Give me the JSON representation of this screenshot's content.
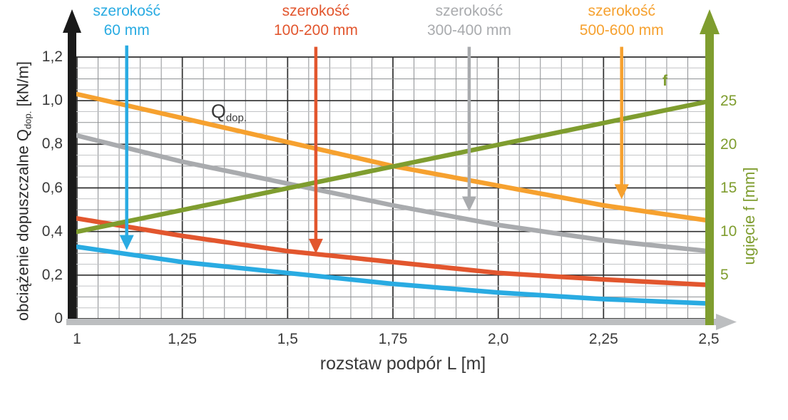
{
  "chart_data": {
    "type": "line",
    "title": "",
    "xlabel": "rozstaw podpór L [m]",
    "x_range": [
      1,
      2.5
    ],
    "x": [
      1,
      1.25,
      1.5,
      1.75,
      2.0,
      2.25,
      2.5
    ],
    "x_tick_labels": [
      "1",
      "1,25",
      "1,5",
      "1,75",
      "2,0",
      "2,25",
      "2,5"
    ],
    "left_axis": {
      "label_pre": "obciążenie dopuszczalne Q",
      "label_sub": "dop.",
      "label_post": " [kN/m]",
      "range": [
        0,
        1.2
      ],
      "tick_values": [
        0,
        0.2,
        0.4,
        0.6,
        0.8,
        1.0,
        1.2
      ],
      "tick_labels": [
        "0",
        "0,2",
        "0,4",
        "0,6",
        "0,8",
        "1,0",
        "1,2"
      ],
      "color": "#1a1a1a"
    },
    "right_axis": {
      "label": "ugięcie f [mm]",
      "range": [
        0,
        25
      ],
      "tick_values": [
        5,
        10,
        15,
        20,
        25
      ],
      "tick_labels": [
        "5",
        "10",
        "15",
        "20",
        "25"
      ],
      "color": "#7f9d2f"
    },
    "grid": {
      "on": true,
      "x_minor_step": 0.05,
      "x_major_step": 0.25,
      "y_minor_step": 0.05,
      "y_major_step": 0.2,
      "minor_color": "#c2c4c6",
      "medium_color": "#8d8f92",
      "major_color": "#2f2f2f"
    },
    "x_axis_bar_color": "#bcbec0",
    "series": [
      {
        "name": "szerokość 60 mm",
        "axis": "left",
        "color": "#29abe2",
        "values": [
          0.33,
          0.26,
          0.21,
          0.16,
          0.12,
          0.09,
          0.07
        ]
      },
      {
        "name": "szerokość 100-200 mm",
        "axis": "left",
        "color": "#e2562e",
        "values": [
          0.46,
          0.38,
          0.31,
          0.26,
          0.21,
          0.18,
          0.155
        ]
      },
      {
        "name": "szerokość 300-400 mm",
        "axis": "left",
        "color": "#a9abae",
        "values": [
          0.84,
          0.72,
          0.62,
          0.52,
          0.43,
          0.36,
          0.31
        ]
      },
      {
        "name": "szerokość 500-600 mm",
        "axis": "left",
        "color": "#f6a12f",
        "values": [
          1.03,
          0.92,
          0.81,
          0.7,
          0.61,
          0.52,
          0.45
        ]
      },
      {
        "name": "ugięcie f",
        "axis": "right",
        "color": "#7f9d2f",
        "values": [
          10,
          12.5,
          15,
          17.5,
          20,
          22.5,
          25
        ]
      }
    ],
    "legend_position": "top",
    "legend": [
      {
        "line1": "szerokość",
        "line2": "60 mm",
        "color": "#29abe2",
        "anchor_L": 1.118,
        "arrow_from_Q": 1.253,
        "arrow_to_Q": 0.315
      },
      {
        "line1": "szerokość",
        "line2": "100-200 mm",
        "color": "#e2562e",
        "anchor_L": 1.567,
        "arrow_from_Q": 1.247,
        "arrow_to_Q": 0.298
      },
      {
        "line1": "szerokość",
        "line2": "300-400 mm",
        "color": "#a9abae",
        "anchor_L": 1.931,
        "arrow_from_Q": 1.247,
        "arrow_to_Q": 0.492
      },
      {
        "line1": "szerokość",
        "line2": "500-600 mm",
        "color": "#f6a12f",
        "anchor_L": 2.293,
        "arrow_from_Q": 1.247,
        "arrow_to_Q": 0.548
      }
    ],
    "annotations": [
      {
        "id": "qdop",
        "text_main": "Q",
        "text_sub": "dop.",
        "x_L": 1.318,
        "y_Q": 1.0,
        "color": "#3a3a3a"
      },
      {
        "id": "f",
        "text": "f",
        "x_L": 2.39,
        "y_Q": 1.128,
        "color": "#7f9d2f"
      }
    ]
  }
}
